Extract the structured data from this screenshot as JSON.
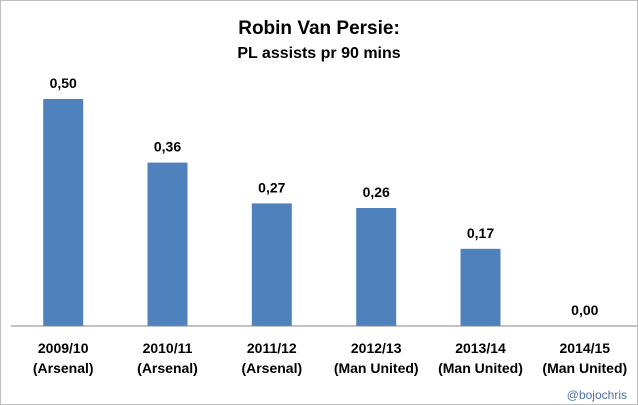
{
  "chart_data": {
    "type": "bar",
    "title": "Robin Van Persie:",
    "subtitle": "PL assists pr 90 mins",
    "categories": [
      [
        "2009/10",
        "(Arsenal)"
      ],
      [
        "2010/11",
        "(Arsenal)"
      ],
      [
        "2011/12",
        "(Arsenal)"
      ],
      [
        "2012/13",
        "(Man United)"
      ],
      [
        "2013/14",
        "(Man United)"
      ],
      [
        "2014/15",
        "(Man United)"
      ]
    ],
    "values": [
      0.5,
      0.36,
      0.27,
      0.26,
      0.17,
      0.0
    ],
    "data_labels": [
      "0,50",
      "0,36",
      "0,27",
      "0,26",
      "0,17",
      "0,00"
    ],
    "ylim": [
      0,
      0.5
    ],
    "grid": false,
    "legend": "none",
    "bar_color": "#4f81bd",
    "credit": "@bojochris"
  }
}
